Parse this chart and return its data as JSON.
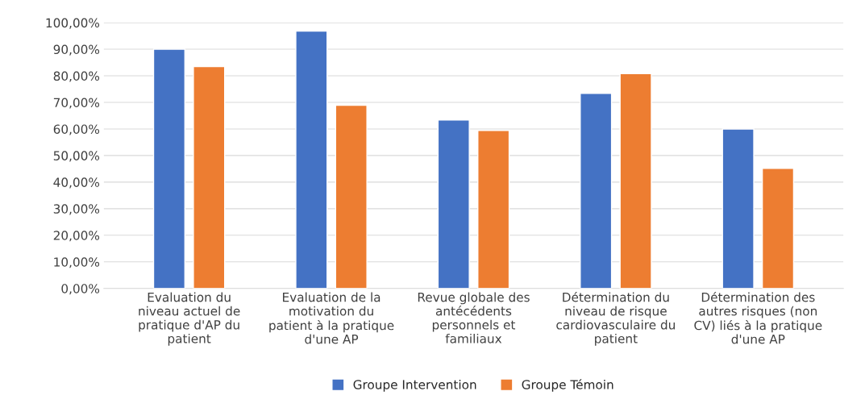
{
  "chart_data": {
    "type": "bar",
    "categories": [
      "Evaluation du\nniveau actuel de\npratique d'AP du\npatient",
      "Evaluation de la\nmotivation du\npatient à la pratique\nd'une AP",
      "Revue globale des\nantécédents\npersonnels et\nfamiliaux",
      "Détermination du\nniveau de risque\ncardiovasculaire du\npatient",
      "Détermination des\nautres risques (non\nCV) liés à la pratique\nd'une AP"
    ],
    "series": [
      {
        "name": "Groupe Intervention",
        "color": "#4472c4",
        "values": [
          90.0,
          96.8,
          63.4,
          73.4,
          60.0
        ]
      },
      {
        "name": "Groupe Témoin",
        "color": "#ed7d31",
        "values": [
          83.5,
          68.9,
          59.4,
          80.8,
          45.2
        ]
      }
    ],
    "ylim": [
      0,
      100
    ],
    "yticks": [
      {
        "value": 0,
        "label": "0,00%"
      },
      {
        "value": 10,
        "label": "10,00%"
      },
      {
        "value": 20,
        "label": "20,00%"
      },
      {
        "value": 30,
        "label": "30,00%"
      },
      {
        "value": 40,
        "label": "40,00%"
      },
      {
        "value": 50,
        "label": "50,00%"
      },
      {
        "value": 60,
        "label": "60,00%"
      },
      {
        "value": 70,
        "label": "70,00%"
      },
      {
        "value": 80,
        "label": "80,00%"
      },
      {
        "value": 90,
        "label": "90,00%"
      },
      {
        "value": 100,
        "label": "100,00%"
      }
    ],
    "grid": "y",
    "legend": "bottom"
  }
}
